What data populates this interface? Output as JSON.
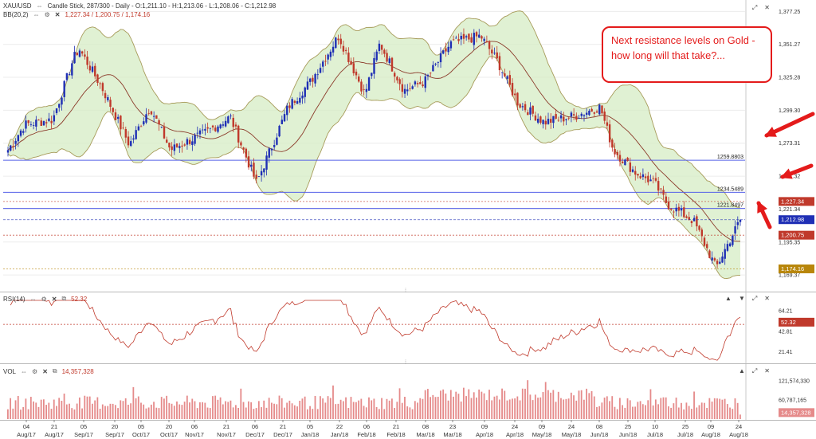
{
  "symbol": "XAU/USD",
  "legend": {
    "main": "Candle Stick, 287/300 - Daily - O:1,211.10 - H:1,213.06 - L:1,208.06 - C:1,212.98",
    "bb_name": "BB(20,2)",
    "bb_values": "1,227.34 / 1,200.75 / 1,174.16",
    "rsi_name": "RSI(14)",
    "rsi_value": "52.32",
    "vol_name": "VOL",
    "vol_value": "14,357,328"
  },
  "annotation": {
    "text": "Next resistance levels on Gold - how long will that take?..."
  },
  "price_axis": {
    "ticks": [
      "1,377.25",
      "1,351.27",
      "1,325.28",
      "1,299.30",
      "1,273.31",
      "1,247.32",
      "1,221.34",
      "1,195.35",
      "1,169.37"
    ],
    "tick_values": [
      1377.25,
      1351.27,
      1325.28,
      1299.3,
      1273.31,
      1247.32,
      1221.34,
      1195.35,
      1169.37
    ],
    "range": [
      1160,
      1380
    ]
  },
  "resistance_lines": [
    {
      "value": 1259.8803,
      "label": "1259.8803"
    },
    {
      "value": 1234.5489,
      "label": "1234.5489"
    },
    {
      "value": 1221.8497,
      "label": "1221.8497"
    }
  ],
  "price_tags": [
    {
      "label": "1,227.34",
      "value": 1227.34,
      "color": "#c0392b"
    },
    {
      "label": "1,212.98",
      "value": 1212.98,
      "color": "#1f2fb5"
    },
    {
      "label": "1,200.75",
      "value": 1200.75,
      "color": "#c0392b"
    },
    {
      "label": "1,174.16",
      "value": 1174.16,
      "color": "#b8860b"
    }
  ],
  "rsi_axis": {
    "ticks": [
      "64.21",
      "42.81",
      "21.41"
    ],
    "tick_values": [
      64.21,
      42.81,
      21.41
    ],
    "range": [
      12,
      75
    ],
    "tag": "52.32"
  },
  "vol_axis": {
    "ticks": [
      "121,574,330",
      "60,787,165"
    ],
    "tick_values": [
      121574330,
      60787165
    ],
    "range": [
      0,
      165000000
    ],
    "tag": "14,357,328"
  },
  "x_axis": {
    "days": [
      "04",
      "21",
      "05",
      "20",
      "05",
      "20",
      "06",
      "21",
      "06",
      "21",
      "05",
      "22",
      "06",
      "21",
      "08",
      "23",
      "09",
      "24",
      "09",
      "24",
      "08",
      "25",
      "10",
      "25",
      "09",
      "24"
    ],
    "months": [
      "Aug/17",
      "Aug/17",
      "Sep/17",
      "Sep/17",
      "Oct/17",
      "Oct/17",
      "Nov/17",
      "Nov/17",
      "Dec/17",
      "Dec/17",
      "Jan/18",
      "Jan/18",
      "Feb/18",
      "Feb/18",
      "Mar/18",
      "Mar/18",
      "Apr/18",
      "Apr/18",
      "May/18",
      "May/18",
      "Jun/18",
      "Jun/18",
      "Jul/18",
      "Jul/18",
      "Aug/18",
      "Aug/18"
    ]
  },
  "chart_data": {
    "type": "candlestick",
    "title": "XAU/USD",
    "series_description": "Daily gold candles with Bollinger Bands (20,2), RSI(14) and Volume",
    "ylim": [
      1160,
      1380
    ],
    "close_anchors": [
      {
        "date": "2017-08-01",
        "close": 1268
      },
      {
        "date": "2017-08-10",
        "close": 1288
      },
      {
        "date": "2017-08-25",
        "close": 1292
      },
      {
        "date": "2017-09-05",
        "close": 1340
      },
      {
        "date": "2017-09-08",
        "close": 1348
      },
      {
        "date": "2017-09-20",
        "close": 1318
      },
      {
        "date": "2017-10-05",
        "close": 1272
      },
      {
        "date": "2017-10-16",
        "close": 1302
      },
      {
        "date": "2017-10-27",
        "close": 1268
      },
      {
        "date": "2017-11-15",
        "close": 1282
      },
      {
        "date": "2017-11-28",
        "close": 1294
      },
      {
        "date": "2017-12-12",
        "close": 1242
      },
      {
        "date": "2017-12-29",
        "close": 1302
      },
      {
        "date": "2018-01-10",
        "close": 1322
      },
      {
        "date": "2018-01-25",
        "close": 1358
      },
      {
        "date": "2018-02-08",
        "close": 1312
      },
      {
        "date": "2018-02-16",
        "close": 1352
      },
      {
        "date": "2018-03-01",
        "close": 1315
      },
      {
        "date": "2018-03-12",
        "close": 1322
      },
      {
        "date": "2018-03-26",
        "close": 1352
      },
      {
        "date": "2018-04-11",
        "close": 1358
      },
      {
        "date": "2018-04-20",
        "close": 1338
      },
      {
        "date": "2018-05-01",
        "close": 1305
      },
      {
        "date": "2018-05-15",
        "close": 1290
      },
      {
        "date": "2018-06-01",
        "close": 1295
      },
      {
        "date": "2018-06-14",
        "close": 1302
      },
      {
        "date": "2018-06-21",
        "close": 1268
      },
      {
        "date": "2018-07-03",
        "close": 1250
      },
      {
        "date": "2018-07-13",
        "close": 1242
      },
      {
        "date": "2018-07-20",
        "close": 1225
      },
      {
        "date": "2018-08-03",
        "close": 1212
      },
      {
        "date": "2018-08-15",
        "close": 1175
      },
      {
        "date": "2018-08-20",
        "close": 1190
      },
      {
        "date": "2018-08-28",
        "close": 1213
      }
    ],
    "bollinger": {
      "period": 20,
      "stddev": 2,
      "upper": 1227.34,
      "middle": 1200.75,
      "lower": 1174.16
    },
    "last_candle": {
      "open": 1211.1,
      "high": 1213.06,
      "low": 1208.06,
      "close": 1212.98
    },
    "rsi": {
      "period": 14,
      "last": 52.32,
      "reference_line": 50
    },
    "volume": {
      "last": 14357328
    }
  },
  "colors": {
    "up": "#1f2fb5",
    "down": "#c0392b",
    "band_fill": "#d6ecc4",
    "band_edge": "#a79b5a",
    "band_mid": "#8b3a2a",
    "resistance": "#5560e8",
    "annotation": "#e41b1b"
  }
}
